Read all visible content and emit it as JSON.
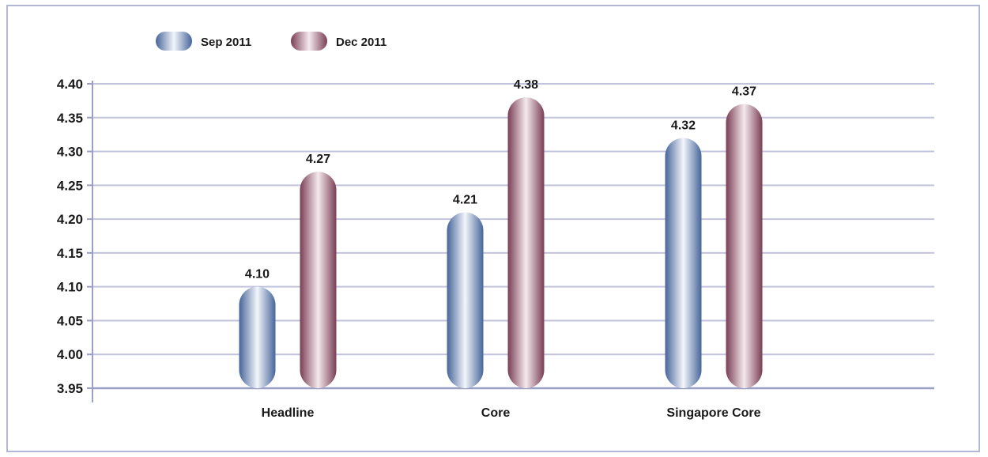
{
  "chart_data": {
    "type": "bar",
    "title": "",
    "xlabel": "",
    "ylabel": "",
    "categories": [
      "Headline",
      "Core",
      "Singapore Core"
    ],
    "series": [
      {
        "name": "Sep 2011",
        "values": [
          4.1,
          4.21,
          4.32
        ]
      },
      {
        "name": "Dec 2011",
        "values": [
          4.27,
          4.38,
          4.37
        ]
      }
    ],
    "value_labels": [
      [
        "4.10",
        "4.21",
        "4.32"
      ],
      [
        "4.27",
        "4.38",
        "4.37"
      ]
    ],
    "ylim": [
      3.95,
      4.4
    ],
    "yticks": [
      "3.95",
      "4.00",
      "4.05",
      "4.10",
      "4.15",
      "4.20",
      "4.25",
      "4.30",
      "4.35",
      "4.40"
    ],
    "grid": true,
    "legend_position": "top-left"
  },
  "colors": {
    "series_1_dark": "#46659a",
    "series_1_light": "#f3f6fb",
    "series_2_dark": "#7a3e54",
    "series_2_light": "#f4eaee",
    "gridline": "#c2c3dd",
    "axis": "#9aa0c4",
    "frame": "#b3b6d6"
  }
}
